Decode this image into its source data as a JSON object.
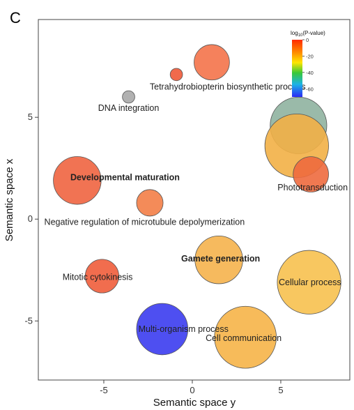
{
  "panel_letter": "C",
  "chart_data": {
    "type": "scatter",
    "title": "",
    "xlabel": "Semantic space y",
    "ylabel": "Semantic space x",
    "xlim": [
      -8.7,
      8.9
    ],
    "ylim": [
      -7.9,
      9.8
    ],
    "xticks": [
      -5,
      0,
      5
    ],
    "yticks": [
      -5,
      0,
      5
    ],
    "grid": false,
    "legend": {
      "title_prefix": "log",
      "title_sub": "10",
      "title_suffix": "(P-value)",
      "ticks": [
        "0",
        "-20",
        "-40",
        "-60"
      ],
      "tick_values": [
        0,
        -20,
        -40,
        -60
      ],
      "range": [
        -70,
        0
      ],
      "placement": "top-right"
    },
    "points": [
      {
        "x": 1.1,
        "y": 7.7,
        "size": 1.0,
        "log_p": -2,
        "color": "#f4734a",
        "label": ""
      },
      {
        "x": -0.9,
        "y": 7.1,
        "size": 0.35,
        "log_p": -1,
        "color": "#f05a38",
        "label": ""
      },
      {
        "x": -3.6,
        "y": 6.0,
        "size": 0.35,
        "log_p": null,
        "color": "#a9a9a9",
        "label": ""
      },
      {
        "x": 6.0,
        "y": 4.6,
        "size": 1.6,
        "log_p": -45,
        "color": "#8fb2a0",
        "label": ""
      },
      {
        "x": 5.9,
        "y": 3.6,
        "size": 1.8,
        "log_p": -20,
        "color": "#f2b046",
        "label": ""
      },
      {
        "x": 6.7,
        "y": 2.2,
        "size": 1.0,
        "log_p": -4,
        "color": "#ee6a3e",
        "label": ""
      },
      {
        "x": -6.5,
        "y": 1.9,
        "size": 1.35,
        "log_p": -3,
        "color": "#f06440",
        "label": ""
      },
      {
        "x": -2.4,
        "y": 0.8,
        "size": 0.75,
        "log_p": -5,
        "color": "#f37e47",
        "label": ""
      },
      {
        "x": 1.5,
        "y": -2.0,
        "size": 1.35,
        "log_p": -16,
        "color": "#f5b34d",
        "label": ""
      },
      {
        "x": 6.6,
        "y": -3.1,
        "size": 1.8,
        "log_p": -18,
        "color": "#f7c14f",
        "label": ""
      },
      {
        "x": -5.1,
        "y": -2.8,
        "size": 0.95,
        "log_p": -4,
        "color": "#ef5d3b",
        "label": ""
      },
      {
        "x": -1.7,
        "y": -5.4,
        "size": 1.45,
        "log_p": -64,
        "color": "#3b3cf0",
        "label": ""
      },
      {
        "x": 3.0,
        "y": -5.8,
        "size": 1.75,
        "log_p": -18,
        "color": "#f6b448",
        "label": ""
      }
    ],
    "annotations": [
      {
        "text": "Tetrahydrobiopterin biosynthetic process",
        "x": 2.0,
        "y": 6.5,
        "bold": false
      },
      {
        "text": "DNA integration",
        "x": -3.6,
        "y": 5.45,
        "bold": false
      },
      {
        "text": "Developmental maturation",
        "x": -3.8,
        "y": 2.05,
        "bold": true
      },
      {
        "text": "Phototransduction",
        "x": 6.8,
        "y": 1.55,
        "bold": false
      },
      {
        "text": "Negative regulation of microtubule depolymerization",
        "x": -2.7,
        "y": -0.15,
        "bold": false
      },
      {
        "text": "Gamete generation",
        "x": 1.6,
        "y": -1.95,
        "bold": true
      },
      {
        "text": "Cellular process",
        "x": 6.65,
        "y": -3.1,
        "bold": false
      },
      {
        "text": "Mitotic cytokinesis",
        "x": -5.35,
        "y": -2.85,
        "bold": false
      },
      {
        "text": "Multi-organism process",
        "x": -0.5,
        "y": -5.4,
        "bold": false
      },
      {
        "text": "Cell communication",
        "x": 2.9,
        "y": -5.85,
        "bold": false
      }
    ]
  }
}
